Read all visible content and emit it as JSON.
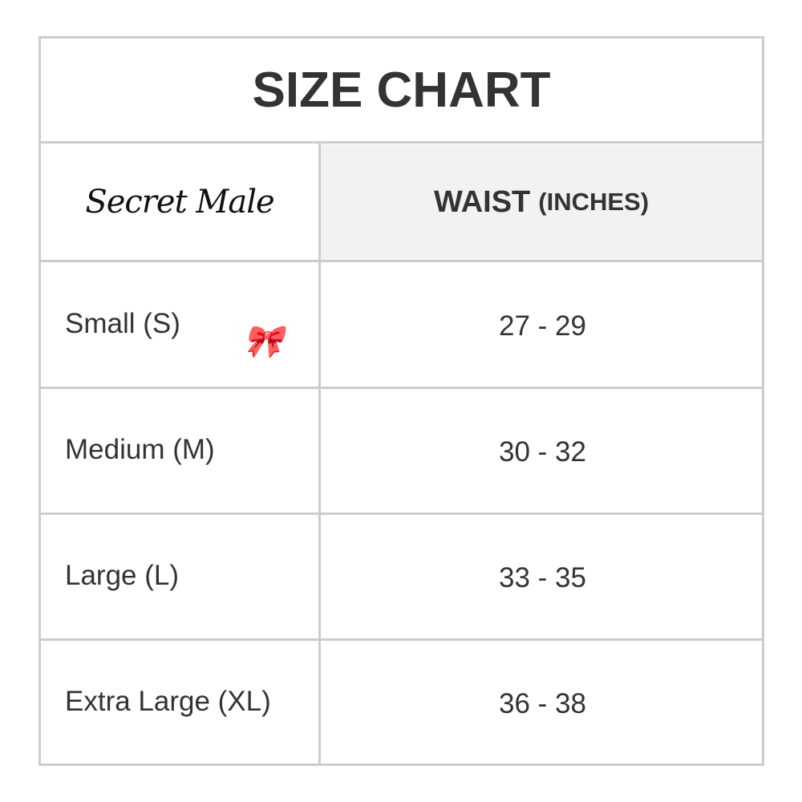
{
  "title": "SIZE CHART",
  "brand_logo": "Secret Male",
  "header": {
    "measure": "WAIST",
    "unit": "(INCHES)"
  },
  "rows": [
    {
      "size": "Small (S)",
      "waist": "27 - 29"
    },
    {
      "size": "Medium (M)",
      "waist": "30 - 32"
    },
    {
      "size": "Large (L)",
      "waist": "33 - 35"
    },
    {
      "size": "Extra Large (XL)",
      "waist": "36 - 38"
    }
  ],
  "colors": {
    "border": "#cccccc",
    "header_bg": "#f2f2f2",
    "text": "#333333",
    "bow": "#e6007e"
  }
}
